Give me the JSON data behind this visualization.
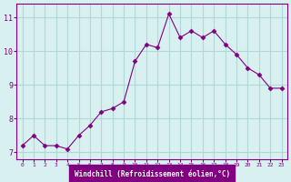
{
  "x": [
    0,
    1,
    2,
    3,
    4,
    5,
    6,
    7,
    8,
    9,
    10,
    11,
    12,
    13,
    14,
    15,
    16,
    17,
    18,
    19,
    20,
    21,
    22,
    23
  ],
  "y": [
    7.2,
    7.5,
    7.2,
    7.2,
    7.1,
    7.5,
    7.8,
    8.2,
    8.3,
    8.5,
    9.7,
    10.2,
    10.1,
    11.1,
    10.4,
    10.6,
    10.4,
    10.6,
    10.2,
    9.9,
    9.5,
    9.3,
    8.9,
    8.9
  ],
  "line_color": "#800080",
  "marker": "D",
  "marker_size": 2.5,
  "bg_color": "#d8f0f0",
  "grid_color": "#b0d8d8",
  "xlabel": "Windchill (Refroidissement éolien,°C)",
  "xlabel_bg": "#800080",
  "xlabel_color": "#ffffff",
  "ylabel_ticks": [
    7,
    8,
    9,
    10,
    11
  ],
  "xlim": [
    -0.5,
    23.5
  ],
  "ylim": [
    6.8,
    11.4
  ],
  "spine_color": "#800080"
}
